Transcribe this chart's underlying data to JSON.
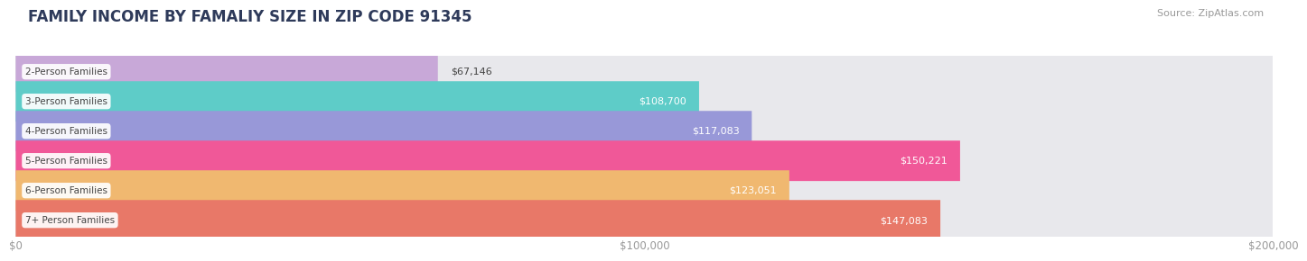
{
  "title": "FAMILY INCOME BY FAMALIY SIZE IN ZIP CODE 91345",
  "source": "Source: ZipAtlas.com",
  "categories": [
    "2-Person Families",
    "3-Person Families",
    "4-Person Families",
    "5-Person Families",
    "6-Person Families",
    "7+ Person Families"
  ],
  "values": [
    67146,
    108700,
    117083,
    150221,
    123051,
    147083
  ],
  "labels": [
    "$67,146",
    "$108,700",
    "$117,083",
    "$150,221",
    "$123,051",
    "$147,083"
  ],
  "bar_colors": [
    "#c8a8d8",
    "#5eccc8",
    "#9898d8",
    "#f05898",
    "#f0b870",
    "#e87868"
  ],
  "bar_bg_color": "#e8e8ec",
  "background_color": "#ffffff",
  "xmax": 200000,
  "xticks": [
    0,
    100000,
    200000
  ],
  "xticklabels": [
    "$0",
    "$100,000",
    "$200,000"
  ],
  "title_fontsize": 12,
  "label_fontsize": 8,
  "tick_fontsize": 8.5,
  "source_fontsize": 8,
  "bar_height": 0.68,
  "label_color_inside": "#ffffff",
  "label_color_outside": "#555555",
  "category_fontsize": 7.5,
  "title_color": "#2e3a5a",
  "grid_color": "#d0d0d8"
}
